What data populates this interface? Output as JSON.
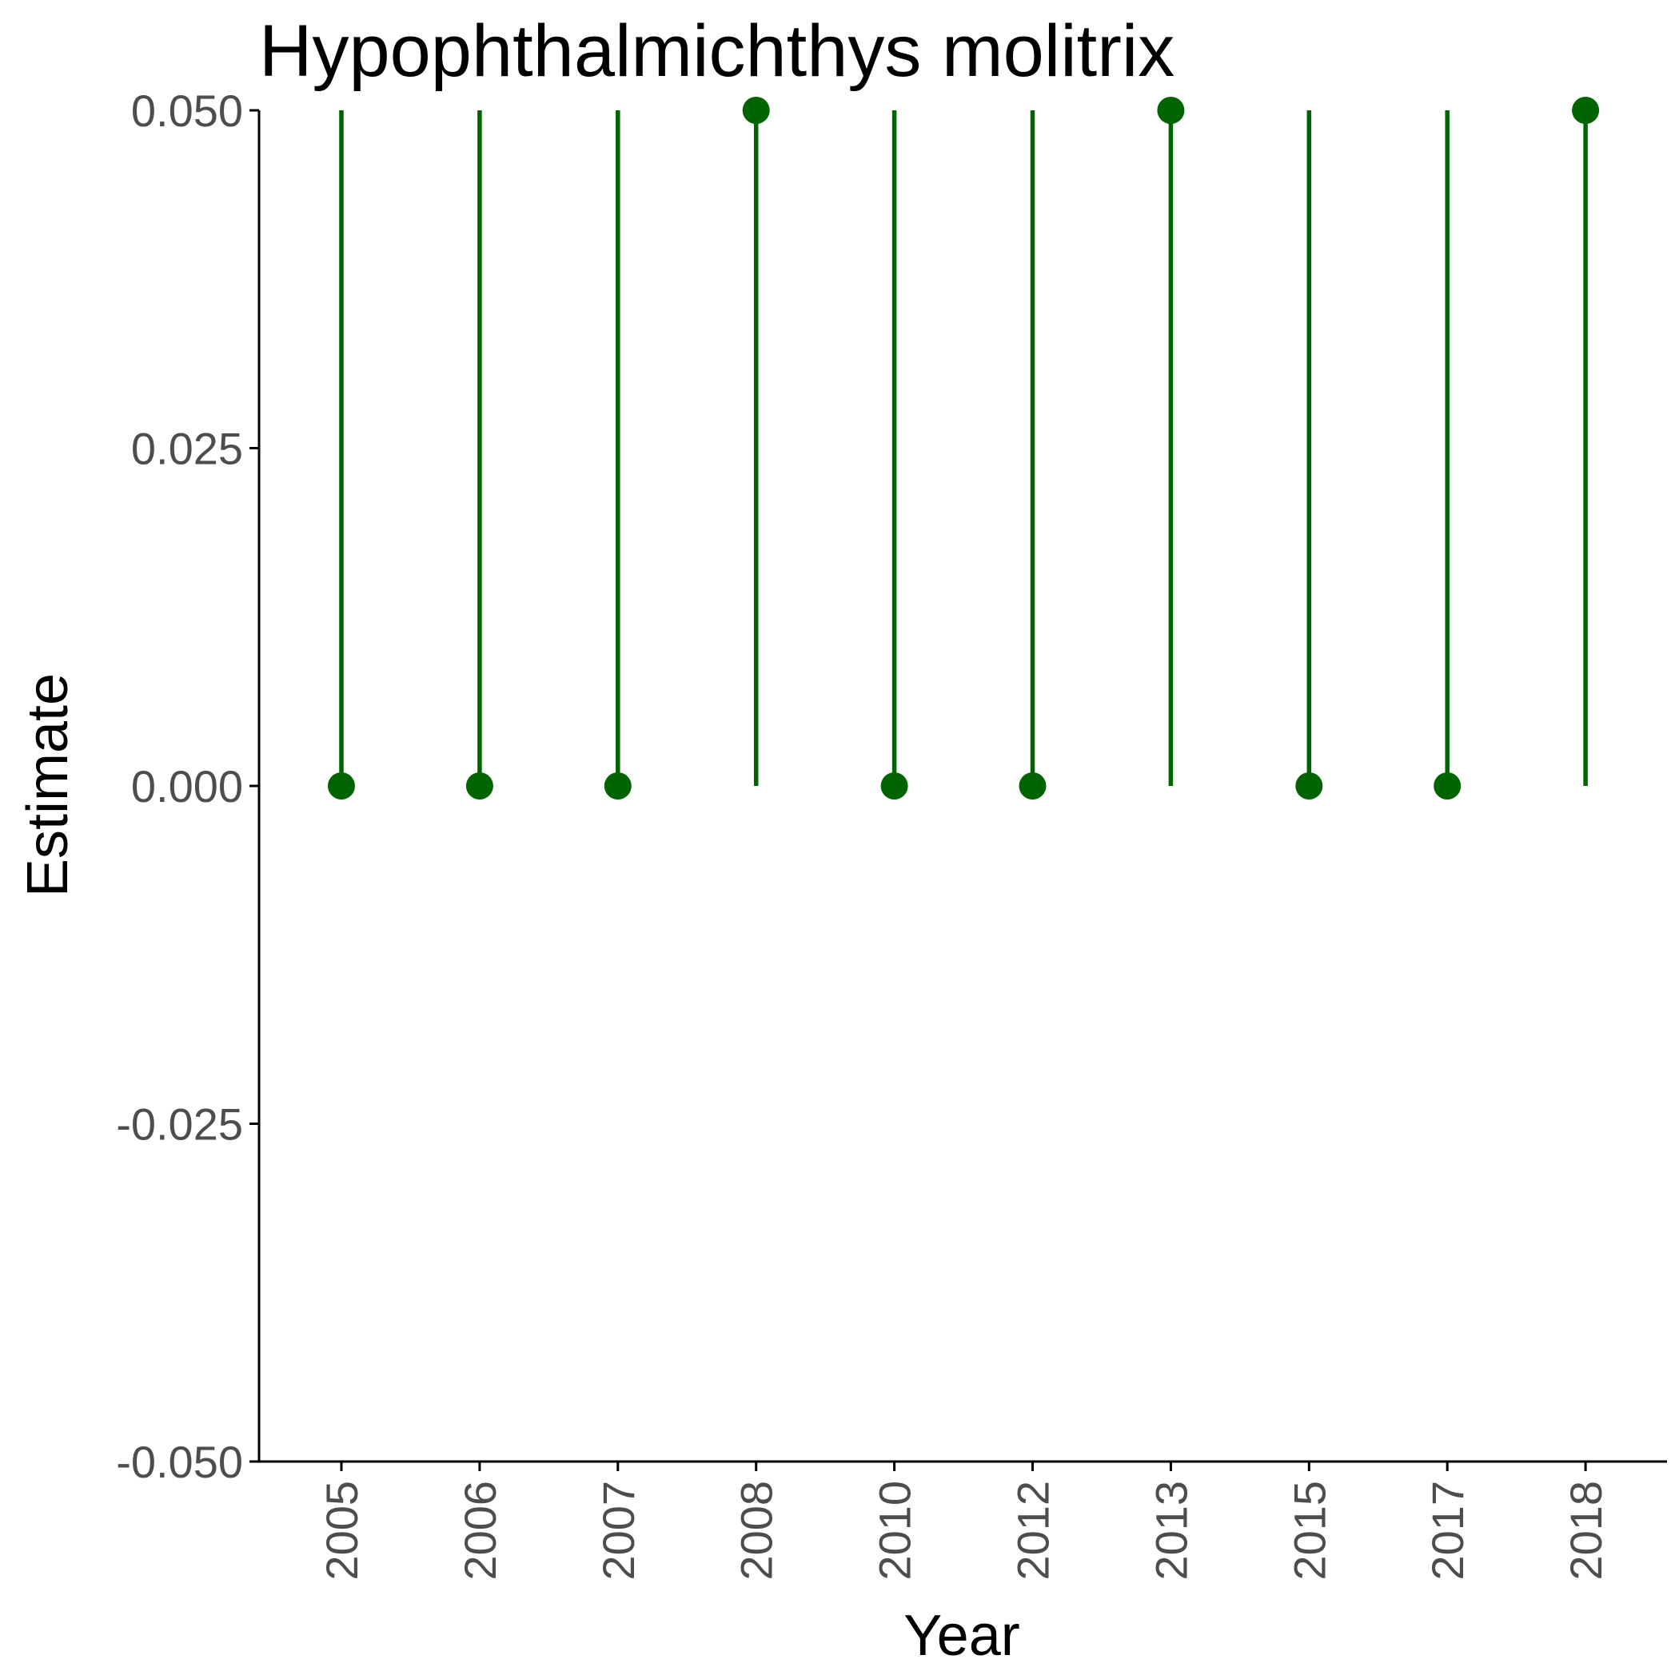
{
  "chart_data": {
    "type": "lollipop",
    "title": "Hypophthalmichthys molitrix",
    "xlabel": "Year",
    "ylabel": "Estimate",
    "categories": [
      "2005",
      "2006",
      "2007",
      "2008",
      "2010",
      "2012",
      "2013",
      "2015",
      "2017",
      "2018"
    ],
    "values": [
      0,
      0,
      0,
      0.05,
      0,
      0,
      0.05,
      0,
      0,
      0.05
    ],
    "series": [
      {
        "values": [
          0,
          0,
          0,
          0.05,
          0,
          0,
          0.05,
          0,
          0,
          0.05
        ],
        "whisker_low": [
          0,
          0,
          0,
          0,
          0,
          0,
          0,
          0,
          0,
          0
        ],
        "whisker_high": [
          0.05,
          0.05,
          0.05,
          0.05,
          0.05,
          0.05,
          0.05,
          0.05,
          0.05,
          0.05
        ]
      }
    ],
    "ylim": [
      -0.05,
      0.05
    ],
    "yticks": [
      "-0.050",
      "-0.025",
      "0.000",
      "0.025",
      "0.050"
    ],
    "ytick_values": [
      -0.05,
      -0.025,
      0,
      0.025,
      0.05
    ],
    "x_tick_rotation": "vertical",
    "grid": false,
    "legend": "none",
    "colors": {
      "series": "#006400",
      "axis": "#000000",
      "tick_label": "#4d4d4d"
    }
  }
}
